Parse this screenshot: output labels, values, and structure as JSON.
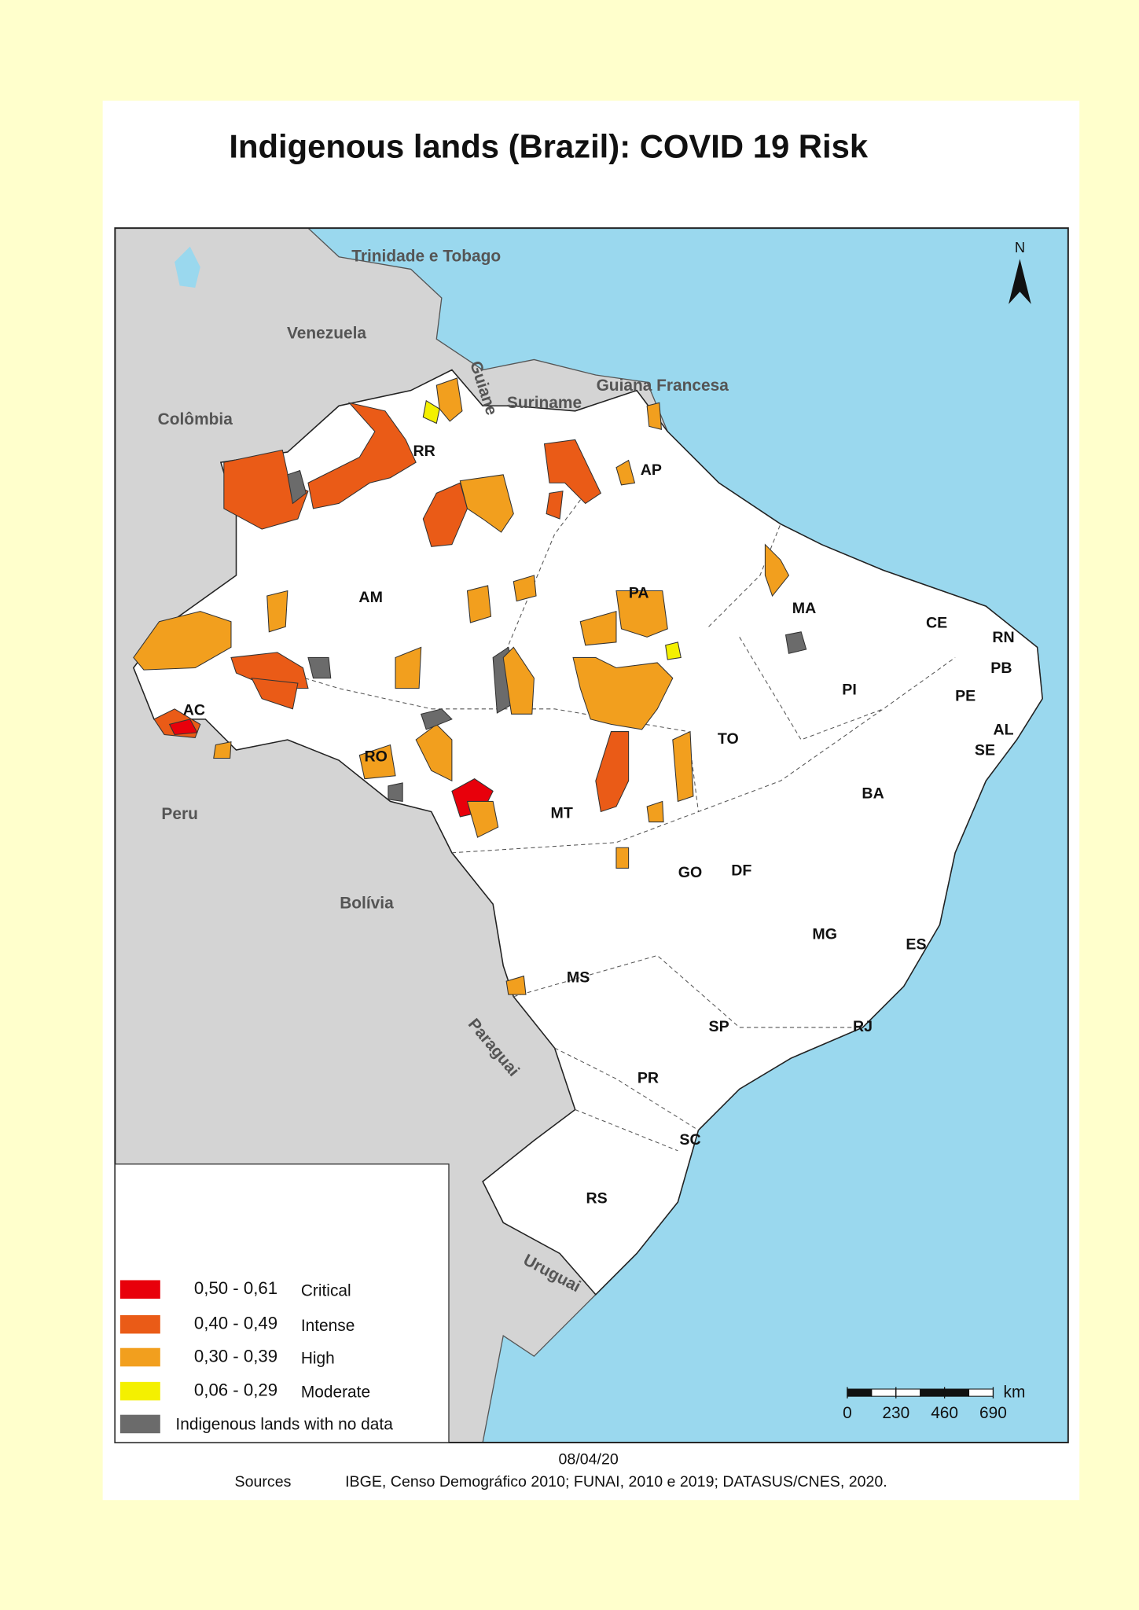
{
  "title": "Indigenous lands (Brazil): COVID 19 Risk",
  "north": "N",
  "countries": [
    "Trinidade e Tobago",
    "Venezuela",
    "Guiane",
    "Suriname",
    "Guiana Francesa",
    "Colômbia",
    "Peru",
    "Bolívia",
    "Paraguai",
    "Uruguai"
  ],
  "states": [
    "RR",
    "AP",
    "AM",
    "PA",
    "MA",
    "CE",
    "RN",
    "PB",
    "PI",
    "PE",
    "AL",
    "SE",
    "AC",
    "RO",
    "TO",
    "BA",
    "MT",
    "GO",
    "DF",
    "MG",
    "ES",
    "MS",
    "SP",
    "RJ",
    "PR",
    "SC",
    "RS"
  ],
  "legend": [
    {
      "range": "0,50 - 0,61",
      "label": "Critical",
      "color": "#e8000b"
    },
    {
      "range": "0,40 - 0,49",
      "label": "Intense",
      "color": "#ea5b17"
    },
    {
      "range": "0,30 - 0,39",
      "label": "High",
      "color": "#f29f1e"
    },
    {
      "range": "0,06 - 0,29",
      "label": "Moderate",
      "color": "#f4f000"
    },
    {
      "label": "Indigenous lands with no data",
      "color": "#6b6b6b"
    }
  ],
  "scale_bar": {
    "ticks": [
      0,
      230,
      460,
      690
    ],
    "unit": "km"
  },
  "date": "08/04/20",
  "sources_label": "Sources",
  "sources": "IBGE, Censo Demográfico 2010; FUNAI, 2010 e 2019; DATASUS/CNES, 2020."
}
